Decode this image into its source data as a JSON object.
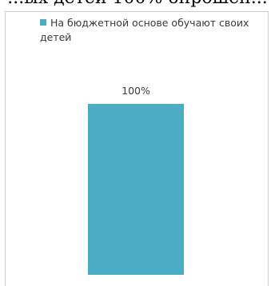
{
  "page": {
    "top_cut_text": "...ых детей 100% опрошен..."
  },
  "chart_data": {
    "type": "bar",
    "categories": [
      ""
    ],
    "series": [
      {
        "name": "На бюджетной основе обучают своих детей",
        "values": [
          100
        ],
        "data_labels": [
          "100%"
        ],
        "color": "#4bacc6"
      }
    ],
    "ylim": [
      0,
      100
    ],
    "grid": false,
    "legend_position": "top-left"
  }
}
